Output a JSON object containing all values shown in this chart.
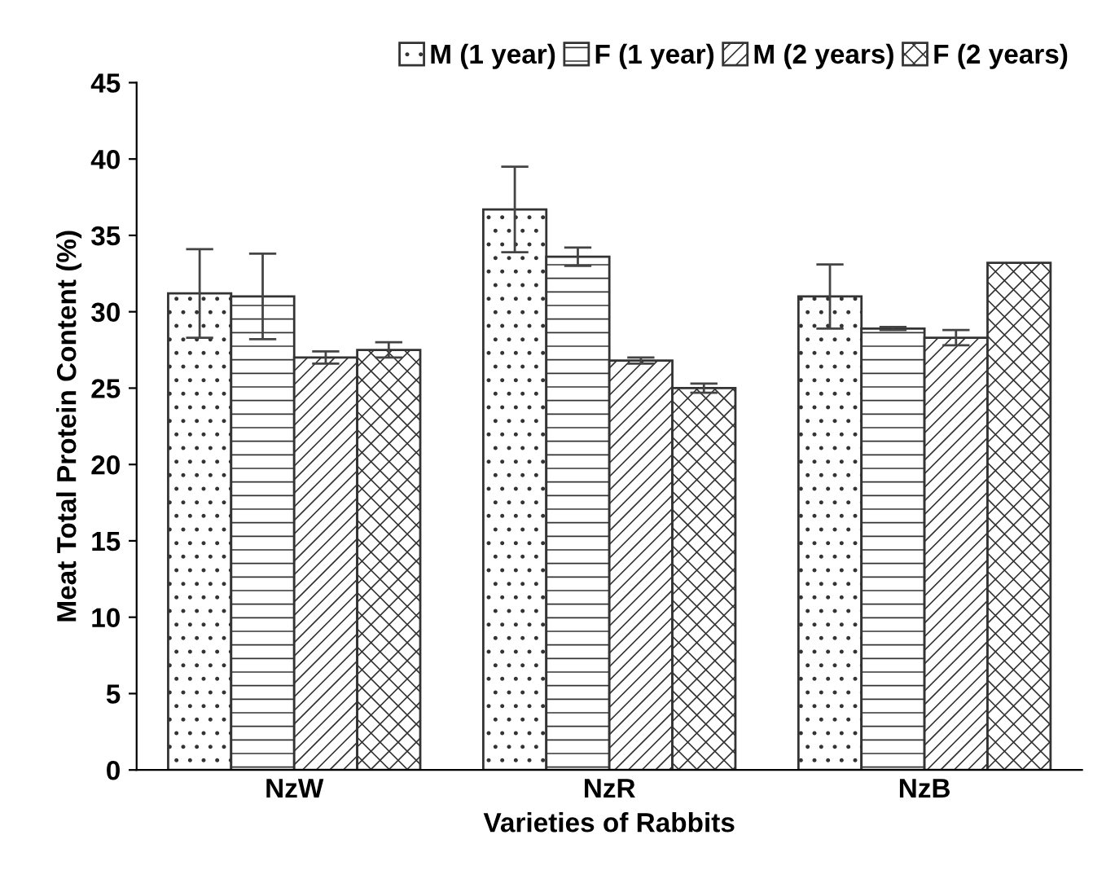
{
  "chart_data": {
    "type": "bar",
    "xlabel": "Varieties of Rabbits",
    "ylabel": "Meat Total Protein Content (%)",
    "categories": [
      "NzW",
      "NzR",
      "NzB"
    ],
    "series": [
      {
        "name": "M (1 year)",
        "color": "#333333",
        "values": [
          31.2,
          36.7,
          31.0
        ],
        "errors": [
          2.9,
          2.8,
          2.1
        ]
      },
      {
        "name": "F (1 year)",
        "color": "#333333",
        "values": [
          31.0,
          33.6,
          28.9
        ],
        "errors": [
          2.8,
          0.6,
          0.1
        ]
      },
      {
        "name": "M (2 years)",
        "color": "#333333",
        "values": [
          27.0,
          26.8,
          28.3
        ],
        "errors": [
          0.4,
          0.2,
          0.5
        ]
      },
      {
        "name": "F (2 years)",
        "color": "#333333",
        "values": [
          27.5,
          25.0,
          33.2
        ],
        "errors": [
          0.5,
          0.3,
          null
        ]
      }
    ],
    "ylim": [
      0,
      45
    ],
    "yticks": [
      0,
      5,
      10,
      15,
      20,
      25,
      30,
      35,
      40,
      45
    ],
    "grid": false,
    "legend": "top right"
  }
}
